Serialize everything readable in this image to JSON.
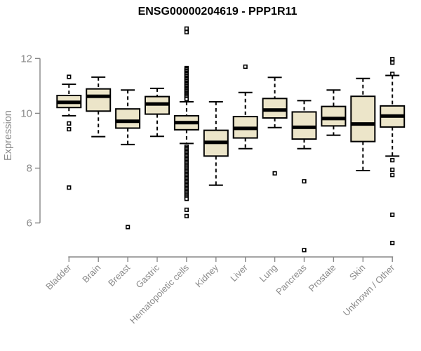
{
  "title": "ENSG00000204619 - PPP1R11",
  "chart_data": {
    "type": "boxplot",
    "title": "ENSG00000204619 - PPP1R11",
    "xlabel": "",
    "ylabel": "Expression",
    "ylim": [
      6,
      12
    ],
    "yticks": [
      6,
      8,
      10,
      12
    ],
    "grid": false,
    "legend": "none",
    "colors": {
      "box_fill": "#ECE5C9",
      "box_border": "#000000",
      "median": "#000000",
      "axis": "#878787",
      "tick_label": "#8a8a8a",
      "title": "#000000"
    },
    "categories": [
      "Bladder",
      "Brain",
      "Breast",
      "Gastric",
      "Hematopoietic cells",
      "Kidney",
      "Liver",
      "Lung",
      "Pancreas",
      "Prostate",
      "Skin",
      "Unknown / Other"
    ],
    "series": [
      {
        "category": "Bladder",
        "whisker_low": 9.91,
        "q1": 10.21,
        "median": 10.4,
        "q3": 10.65,
        "whisker_high": 11.06,
        "outliers": [
          11.33,
          9.63,
          9.42,
          7.29
        ]
      },
      {
        "category": "Brain",
        "whisker_low": 9.15,
        "q1": 10.08,
        "median": 10.62,
        "q3": 10.89,
        "whisker_high": 11.32,
        "outliers": []
      },
      {
        "category": "Breast",
        "whisker_low": 8.86,
        "q1": 9.46,
        "median": 9.71,
        "q3": 10.16,
        "whisker_high": 10.85,
        "outliers": [
          5.85
        ]
      },
      {
        "category": "Gastric",
        "whisker_low": 9.16,
        "q1": 9.97,
        "median": 10.34,
        "q3": 10.61,
        "whisker_high": 10.91,
        "outliers": []
      },
      {
        "category": "Hematopoietic cells",
        "whisker_low": 8.9,
        "q1": 9.4,
        "median": 9.66,
        "q3": 9.91,
        "whisker_high": 10.42,
        "outliers": [
          13.09,
          12.96,
          11.65,
          11.61,
          11.56,
          11.52,
          11.47,
          11.43,
          11.38,
          11.34,
          11.29,
          11.25,
          11.2,
          11.16,
          11.11,
          11.07,
          11.02,
          10.98,
          10.93,
          10.89,
          10.84,
          10.8,
          10.75,
          10.71,
          10.66,
          10.62,
          10.57,
          10.52,
          8.78,
          8.73,
          8.68,
          8.63,
          8.58,
          8.53,
          8.48,
          8.43,
          8.38,
          8.33,
          8.28,
          8.23,
          8.18,
          8.13,
          8.08,
          8.03,
          7.98,
          7.93,
          7.88,
          7.83,
          7.78,
          7.73,
          7.68,
          7.63,
          7.58,
          7.53,
          7.48,
          7.43,
          7.38,
          7.33,
          7.28,
          7.23,
          7.18,
          7.13,
          7.08,
          7.03,
          6.98,
          6.93,
          6.88,
          6.48,
          6.25
        ]
      },
      {
        "category": "Kidney",
        "whisker_low": 7.38,
        "q1": 8.44,
        "median": 8.94,
        "q3": 9.38,
        "whisker_high": 10.42,
        "outliers": []
      },
      {
        "category": "Liver",
        "whisker_low": 8.71,
        "q1": 9.1,
        "median": 9.45,
        "q3": 9.88,
        "whisker_high": 10.76,
        "outliers": [
          11.7
        ]
      },
      {
        "category": "Lung",
        "whisker_low": 9.48,
        "q1": 9.83,
        "median": 10.12,
        "q3": 10.54,
        "whisker_high": 11.31,
        "outliers": [
          7.81
        ]
      },
      {
        "category": "Pancreas",
        "whisker_low": 8.71,
        "q1": 9.06,
        "median": 9.49,
        "q3": 10.05,
        "whisker_high": 10.46,
        "outliers": [
          7.52,
          5.01
        ]
      },
      {
        "category": "Prostate",
        "whisker_low": 9.2,
        "q1": 9.54,
        "median": 9.81,
        "q3": 10.25,
        "whisker_high": 10.85,
        "outliers": []
      },
      {
        "category": "Skin",
        "whisker_low": 7.91,
        "q1": 8.97,
        "median": 9.61,
        "q3": 10.62,
        "whisker_high": 11.27,
        "outliers": []
      },
      {
        "category": "Unknown / Other",
        "whisker_low": 8.44,
        "q1": 9.5,
        "median": 9.9,
        "q3": 10.27,
        "whisker_high": 11.38,
        "outliers": [
          11.98,
          11.85,
          11.44,
          8.29,
          7.94,
          7.75,
          6.3,
          5.27
        ]
      }
    ]
  }
}
